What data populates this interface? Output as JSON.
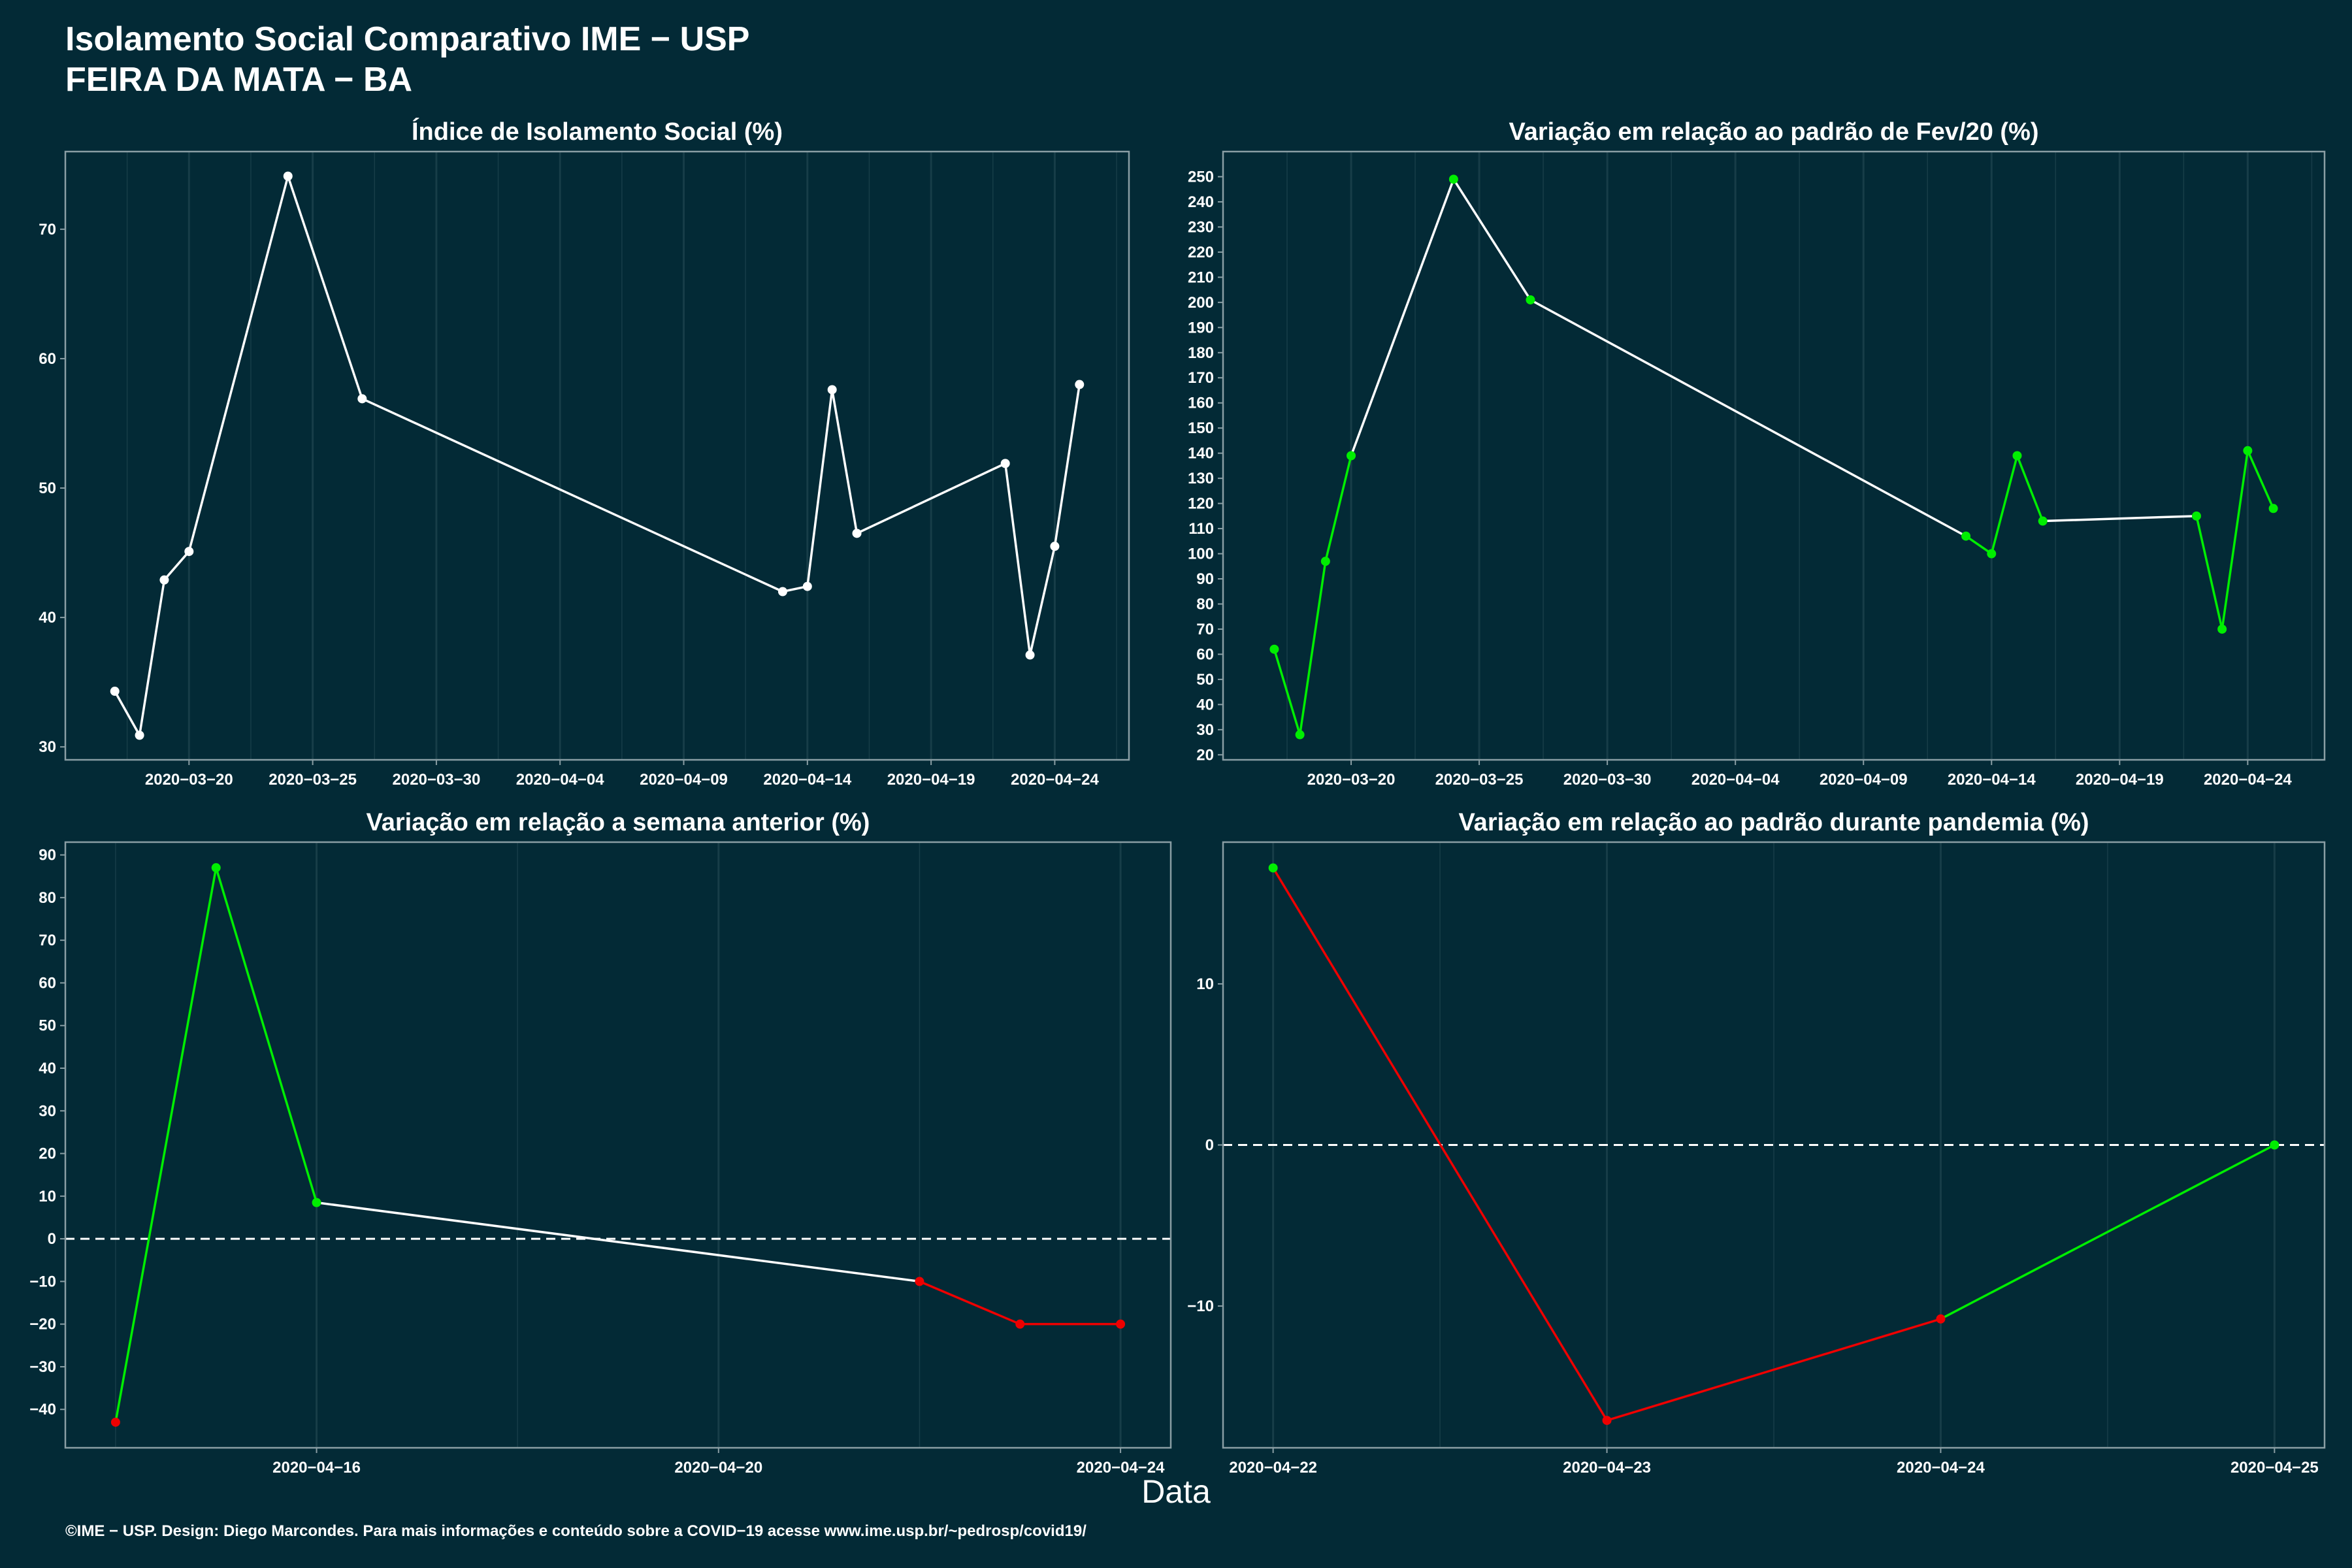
{
  "title_line1": "Isolamento Social Comparativo IME − USP",
  "title_line2": "FEIRA DA MATA − BA",
  "xlabel": "Data",
  "caption": "©IME − USP. Design: Diego Marcondes. Para mais informações e conteúdo sobre a COVID−19 acesse www.ime.usp.br/~pedrosp/covid19/",
  "colors": {
    "background": "#032a36",
    "line_white": "#ffffff",
    "increase": "#00ee00",
    "decrease": "#ee0000",
    "grid": "#173d48",
    "frame": "#8a9ea4"
  },
  "chart_data": [
    {
      "type": "line",
      "title": "Índice de Isolamento Social (%)",
      "x_type": "date",
      "x": [
        "2020-03-17",
        "2020-03-18",
        "2020-03-19",
        "2020-03-20",
        "2020-03-24",
        "2020-03-27",
        "2020-04-13",
        "2020-04-14",
        "2020-04-15",
        "2020-04-16",
        "2020-04-22",
        "2020-04-23",
        "2020-04-24",
        "2020-04-25"
      ],
      "values": [
        34.3,
        30.9,
        42.9,
        45.1,
        74.1,
        56.9,
        42.0,
        42.4,
        57.6,
        46.5,
        51.9,
        37.1,
        45.5,
        58.0
      ],
      "point_colors": [
        "white",
        "white",
        "white",
        "white",
        "white",
        "white",
        "white",
        "white",
        "white",
        "white",
        "white",
        "white",
        "white",
        "white"
      ],
      "segment_colors": [
        "white",
        "white",
        "white",
        "white",
        "white",
        "white",
        "white",
        "white",
        "white",
        "white",
        "white",
        "white",
        "white"
      ],
      "xlim": [
        "2020-03-15",
        "2020-04-27"
      ],
      "ylim": [
        29,
        76
      ],
      "x_ticks": [
        "2020-03-20",
        "2020-03-25",
        "2020-03-30",
        "2020-04-04",
        "2020-04-09",
        "2020-04-14",
        "2020-04-19",
        "2020-04-24"
      ],
      "y_ticks": [
        30,
        40,
        50,
        60,
        70
      ],
      "dashed_zero": false
    },
    {
      "type": "line",
      "title": "Variação em relação ao padrão de Fev/20 (%)",
      "x_type": "date",
      "x": [
        "2020-03-17",
        "2020-03-18",
        "2020-03-19",
        "2020-03-20",
        "2020-03-24",
        "2020-03-27",
        "2020-04-13",
        "2020-04-14",
        "2020-04-15",
        "2020-04-16",
        "2020-04-22",
        "2020-04-23",
        "2020-04-24",
        "2020-04-25"
      ],
      "values": [
        62,
        28,
        97,
        139,
        249,
        201,
        107,
        100,
        139,
        113,
        115,
        70,
        141,
        118
      ],
      "point_colors": [
        "green",
        "green",
        "green",
        "green",
        "green",
        "green",
        "green",
        "green",
        "green",
        "green",
        "green",
        "green",
        "green",
        "green"
      ],
      "segment_colors": [
        "green",
        "green",
        "green",
        "white",
        "white",
        "white",
        "green",
        "green",
        "green",
        "white",
        "green",
        "green",
        "green"
      ],
      "xlim": [
        "2020-03-15",
        "2020-04-27"
      ],
      "ylim": [
        18,
        260
      ],
      "x_ticks": [
        "2020-03-20",
        "2020-03-25",
        "2020-03-30",
        "2020-04-04",
        "2020-04-09",
        "2020-04-14",
        "2020-04-19",
        "2020-04-24"
      ],
      "y_ticks": [
        20,
        30,
        40,
        50,
        60,
        70,
        80,
        90,
        100,
        110,
        120,
        130,
        140,
        150,
        160,
        170,
        180,
        190,
        200,
        210,
        220,
        230,
        240,
        250
      ],
      "dashed_zero": false
    },
    {
      "type": "line",
      "title": "Variação em relação a semana anterior (%)",
      "x_type": "date",
      "x": [
        "2020-04-14",
        "2020-04-15",
        "2020-04-16",
        "2020-04-22",
        "2020-04-23",
        "2020-04-24"
      ],
      "values": [
        -43,
        87,
        8.5,
        -10,
        -20,
        -20
      ],
      "point_colors": [
        "red",
        "green",
        "green",
        "red",
        "red",
        "red"
      ],
      "segment_colors": [
        "green",
        "green",
        "white",
        "red",
        "red"
      ],
      "xlim": [
        "2020-04-13.5",
        "2020-04-24.5"
      ],
      "ylim": [
        -49,
        93
      ],
      "x_ticks": [
        "2020-04-16",
        "2020-04-20",
        "2020-04-24"
      ],
      "y_ticks": [
        -40,
        -30,
        -20,
        -10,
        0,
        10,
        20,
        30,
        40,
        50,
        60,
        70,
        80,
        90
      ],
      "dashed_zero": true
    },
    {
      "type": "line",
      "title": "Variação em relação ao padrão durante pandemia (%)",
      "x_type": "date",
      "x": [
        "2020-04-22",
        "2020-04-23",
        "2020-04-24",
        "2020-04-25"
      ],
      "values": [
        17.2,
        -17.1,
        -10.8,
        0
      ],
      "point_colors": [
        "green",
        "red",
        "red",
        "green"
      ],
      "segment_colors": [
        "red",
        "red",
        "green"
      ],
      "xlim": [
        "2020-04-21.85",
        "2020-04-25.15"
      ],
      "ylim": [
        -18.8,
        18.8
      ],
      "x_ticks": [
        "2020-04-22",
        "2020-04-23",
        "2020-04-24",
        "2020-04-25"
      ],
      "y_ticks": [
        -10,
        0,
        10
      ],
      "dashed_zero": true
    }
  ]
}
